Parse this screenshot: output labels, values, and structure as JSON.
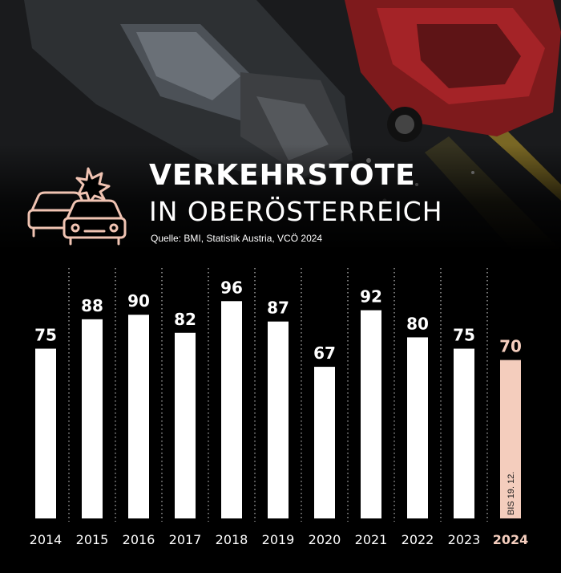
{
  "header": {
    "title_line1": "VERKEHRSTOTE",
    "title_line2": "IN OBERÖSTERREICH",
    "source": "Quelle: BMI, Statistik Austria, VCÖ 2024"
  },
  "icons": {
    "header": "car-crash-icon"
  },
  "colors": {
    "background": "#000000",
    "bar": "#ffffff",
    "highlight": "#f4cdbd",
    "text": "#ffffff",
    "icon": "#f0c3b2"
  },
  "chart_data": {
    "type": "bar",
    "title": "VERKEHRSTOTE IN OBERÖSTERREICH",
    "categories": [
      "2014",
      "2015",
      "2016",
      "2017",
      "2018",
      "2019",
      "2020",
      "2021",
      "2022",
      "2023",
      "2024"
    ],
    "values": [
      75,
      88,
      90,
      82,
      96,
      87,
      67,
      92,
      80,
      75,
      70
    ],
    "highlighted_category": "2024",
    "highlight_note": "BIS 19. 12.",
    "xlabel": "",
    "ylabel": "",
    "ylim": [
      0,
      100
    ],
    "grid": false,
    "legend": "none"
  }
}
